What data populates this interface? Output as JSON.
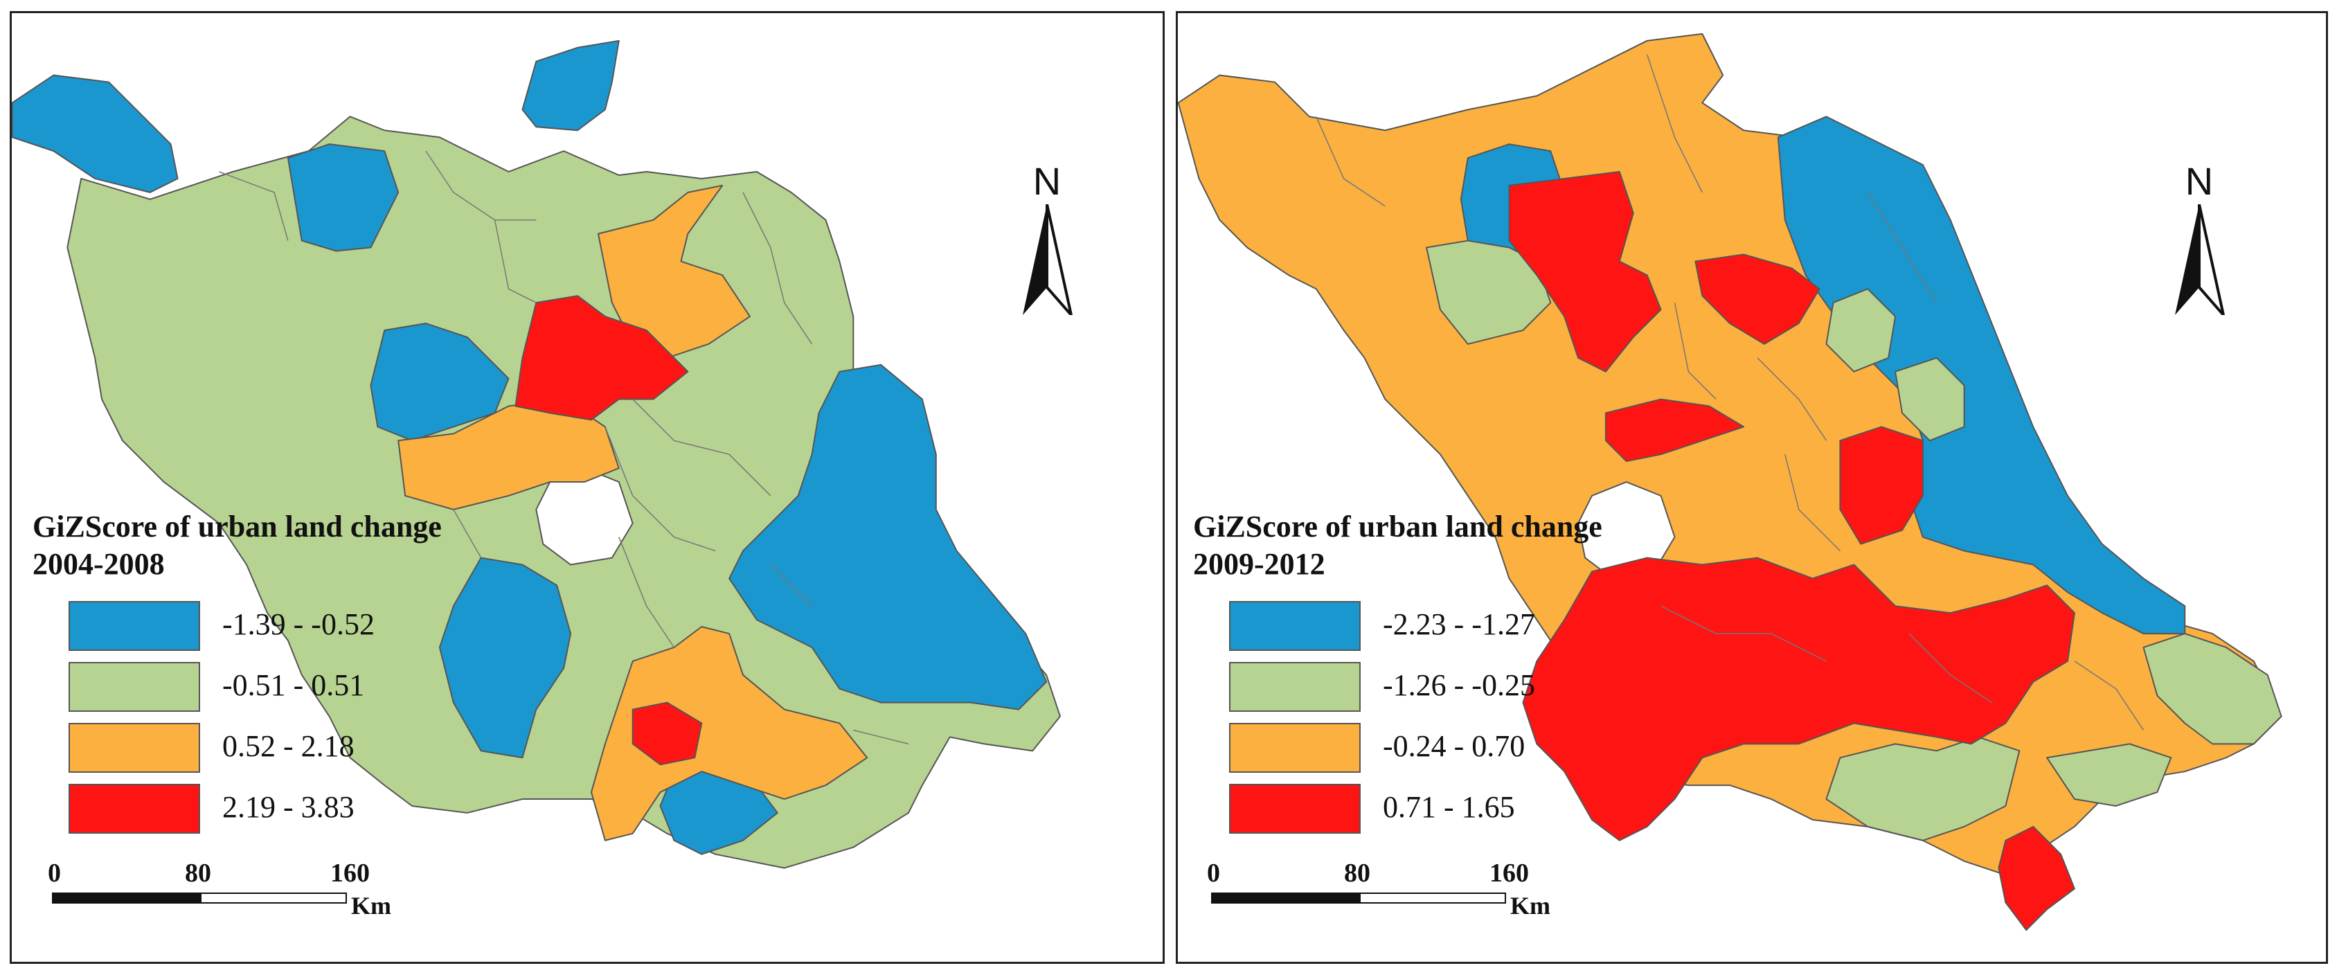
{
  "maps": [
    {
      "id": "left",
      "legend": {
        "title_line1": "GiZScore of urban land change",
        "title_line2": "2004-2008",
        "items": [
          {
            "label": "-1.39 - -0.52",
            "color": "#1a97cf"
          },
          {
            "label": "-0.51 - 0.51",
            "color": "#b7d392"
          },
          {
            "label": "0.52 - 2.18",
            "color": "#fbb040"
          },
          {
            "label": "2.19 - 3.83",
            "color": "#ff1414"
          }
        ]
      },
      "north_label": "N",
      "scale": {
        "ticks": [
          "0",
          "80",
          "160"
        ],
        "unit": "Km"
      }
    },
    {
      "id": "right",
      "legend": {
        "title_line1": "GiZScore of urban land change",
        "title_line2": "2009-2012",
        "items": [
          {
            "label": "-2.23 - -1.27",
            "color": "#1a97cf"
          },
          {
            "label": "-1.26 - -0.25",
            "color": "#b7d392"
          },
          {
            "label": "-0.24 - 0.70",
            "color": "#fbb040"
          },
          {
            "label": "0.71 - 1.65",
            "color": "#ff1414"
          }
        ]
      },
      "north_label": "N",
      "scale": {
        "ticks": [
          "0",
          "80",
          "160"
        ],
        "unit": "Km"
      }
    }
  ]
}
